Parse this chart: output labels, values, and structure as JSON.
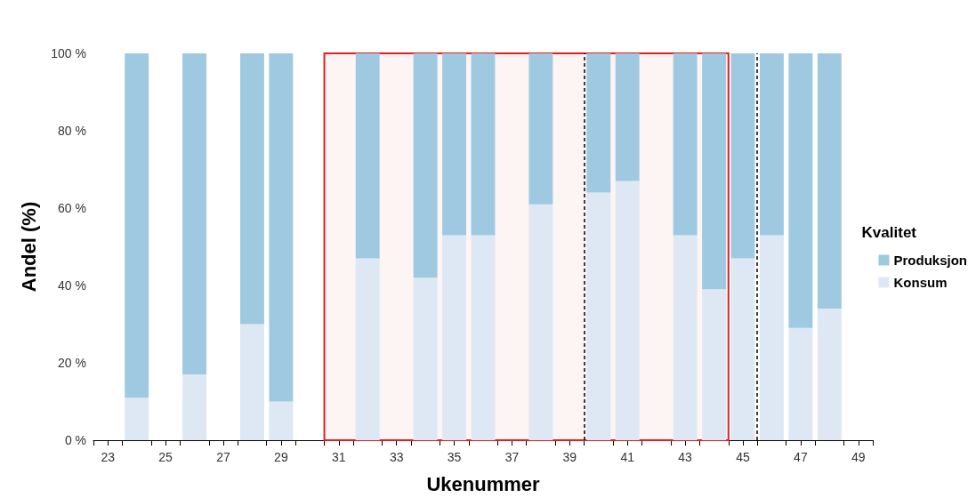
{
  "chart_data": {
    "type": "bar",
    "stacked": true,
    "xlabel": "Ukenummer",
    "ylabel": "Andel (%)",
    "legend_title": "Kvalitet",
    "legend": "right",
    "grid": false,
    "x": [
      24,
      26,
      28,
      29,
      32,
      34,
      35,
      36,
      38,
      40,
      41,
      43,
      44,
      45,
      46,
      47,
      48
    ],
    "xlim": [
      22.5,
      49.5
    ],
    "xticks": [
      {
        "value": 22.5,
        "label": null
      },
      {
        "value": 23,
        "label": "23"
      },
      {
        "value": 23.5,
        "label": null
      },
      {
        "value": 24.5,
        "label": null
      },
      {
        "value": 25,
        "label": "25"
      },
      {
        "value": 25.5,
        "label": null
      },
      {
        "value": 26.5,
        "label": null
      },
      {
        "value": 27,
        "label": "27"
      },
      {
        "value": 27.5,
        "label": null
      },
      {
        "value": 28.5,
        "label": null
      },
      {
        "value": 29,
        "label": "29"
      },
      {
        "value": 29.5,
        "label": null
      },
      {
        "value": 30.5,
        "label": null
      },
      {
        "value": 31,
        "label": "31"
      },
      {
        "value": 31.5,
        "label": null
      },
      {
        "value": 32.5,
        "label": null
      },
      {
        "value": 33,
        "label": "33"
      },
      {
        "value": 33.5,
        "label": null
      },
      {
        "value": 34.5,
        "label": null
      },
      {
        "value": 35,
        "label": "35"
      },
      {
        "value": 35.5,
        "label": null
      },
      {
        "value": 36.5,
        "label": null
      },
      {
        "value": 37,
        "label": "37"
      },
      {
        "value": 37.5,
        "label": null
      },
      {
        "value": 38.5,
        "label": null
      },
      {
        "value": 39,
        "label": "39"
      },
      {
        "value": 39.5,
        "label": null
      },
      {
        "value": 40.5,
        "label": null
      },
      {
        "value": 41,
        "label": "41"
      },
      {
        "value": 41.5,
        "label": null
      },
      {
        "value": 42.5,
        "label": null
      },
      {
        "value": 43,
        "label": "43"
      },
      {
        "value": 43.5,
        "label": null
      },
      {
        "value": 44.5,
        "label": null
      },
      {
        "value": 45,
        "label": "45"
      },
      {
        "value": 45.5,
        "label": null
      },
      {
        "value": 46.5,
        "label": null
      },
      {
        "value": 47,
        "label": "47"
      },
      {
        "value": 47.5,
        "label": null
      },
      {
        "value": 48.5,
        "label": null
      },
      {
        "value": 49,
        "label": "49"
      },
      {
        "value": 49.5,
        "label": null
      }
    ],
    "ylim": [
      0,
      100
    ],
    "yticks": [
      {
        "value": 0,
        "label": "0 %"
      },
      {
        "value": 20,
        "label": "20 %"
      },
      {
        "value": 40,
        "label": "40 %"
      },
      {
        "value": 60,
        "label": "60 %"
      },
      {
        "value": 80,
        "label": "80 %"
      },
      {
        "value": 100,
        "label": "100 %"
      }
    ],
    "series": [
      {
        "name": "Konsum",
        "color": "#dde8f4",
        "values": [
          11,
          17,
          30,
          10,
          47,
          42,
          53,
          53,
          61,
          64,
          67,
          53,
          39,
          47,
          53,
          29,
          34
        ]
      },
      {
        "name": "Produksjon",
        "color": "#9fc9e0",
        "values": [
          89,
          83,
          70,
          90,
          53,
          58,
          47,
          47,
          39,
          36,
          33,
          47,
          61,
          53,
          47,
          71,
          66
        ]
      }
    ],
    "ref_lines": [
      {
        "axis": "x",
        "value": 39.5,
        "color": "#000000",
        "line_style": "dashed"
      },
      {
        "axis": "x",
        "value": 45.5,
        "color": "#000000",
        "line_style": "dashed"
      }
    ],
    "bands": [
      {
        "axis": "x",
        "from": 30.5,
        "to": 44.5,
        "color": "#e02020"
      }
    ]
  }
}
